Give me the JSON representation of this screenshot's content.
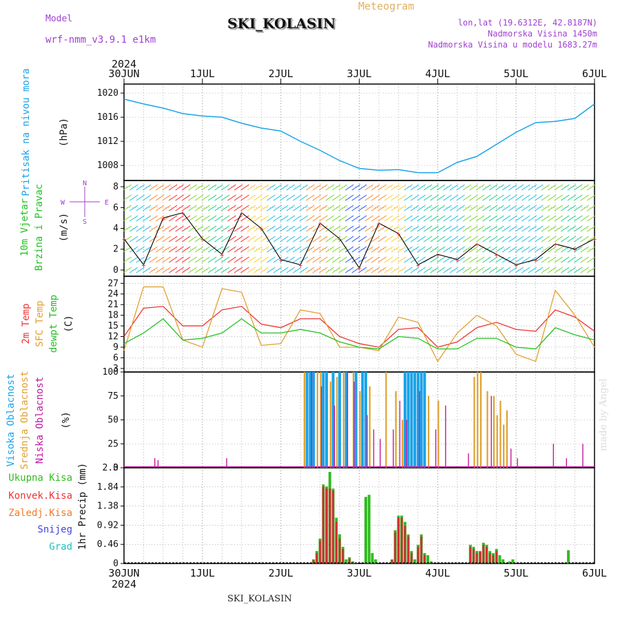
{
  "header": {
    "model_label": "Model",
    "model_name": "wrf-nmm_v3.9.1 e1km",
    "title": "SKI_KOLASIN",
    "meteogram": "Meteogram",
    "lonlat": "lon,lat (19.6312E, 42.8187N)",
    "elevation": "Nadmorska Visina 1450m",
    "model_elevation": "Nadmorska Visina u modelu 1683.27m",
    "credit": "made by Angel",
    "footer": "SKI_KOLASIN"
  },
  "colors": {
    "pressure": "#1aa3e8",
    "temp2m": "#ee3333",
    "sfc_temp": "#e0a030",
    "dewpoint": "#22c022",
    "high_cloud": "#1aa3e8",
    "mid_cloud": "#e0a030",
    "low_cloud": "#c0189c",
    "total_precip": "#33bb22",
    "conv_precip": "#cc3333",
    "grid": "#888888"
  },
  "chart_data": [
    {
      "type": "line",
      "panel": "pressure",
      "ylabel": "Pritisak na nivou mora",
      "unit": "(hPa)",
      "ylim": [
        1005.5,
        1021.5
      ],
      "yticks": [
        1008,
        1012,
        1016,
        1020
      ],
      "x_start_label": "30JUN",
      "x_year": "2024",
      "x_ticks": [
        "30JUN",
        "1JUL",
        "2JUL",
        "3JUL",
        "4JUL",
        "5JUL",
        "6JUL"
      ],
      "x_hours": [
        0,
        6,
        12,
        18,
        24,
        30,
        36,
        42,
        48,
        54,
        60,
        66,
        72,
        78,
        84,
        90,
        96,
        102,
        108,
        114,
        120,
        126,
        132,
        138,
        144
      ],
      "series": [
        {
          "values": [
            1019.0,
            1018.2,
            1017.5,
            1016.6,
            1016.2,
            1016.0,
            1015.0,
            1014.2,
            1013.7,
            1012.0,
            1010.5,
            1008.8,
            1007.5,
            1007.2,
            1007.3,
            1006.8,
            1006.8,
            1008.5,
            1009.5,
            1011.5,
            1013.5,
            1015.1,
            1015.3,
            1015.8,
            1018.2
          ]
        }
      ],
      "grid": true
    },
    {
      "type": "line",
      "panel": "wind",
      "ylabel": [
        "10m Vjetar",
        "Brzina i Pravac"
      ],
      "unit": "(m/s)",
      "direction_legend": {
        "north": "N",
        "south": "S",
        "west": "W",
        "east": "E"
      },
      "ylim": [
        -0.6,
        8.6
      ],
      "yticks": [
        0,
        2,
        4,
        6,
        8
      ],
      "x_hours": [
        0,
        6,
        12,
        18,
        24,
        30,
        36,
        42,
        48,
        54,
        60,
        66,
        72,
        78,
        84,
        90,
        96,
        102,
        108,
        114,
        120,
        126,
        132,
        138,
        144
      ],
      "series": [
        {
          "values": [
            3.0,
            0.5,
            5.0,
            5.5,
            3.0,
            1.5,
            5.5,
            4.0,
            1.0,
            0.5,
            4.5,
            3.0,
            0.2,
            4.5,
            3.5,
            0.5,
            1.5,
            1.0,
            2.5,
            1.5,
            0.5,
            1.0,
            2.5,
            2.0,
            3.0
          ]
        }
      ],
      "grid": true
    },
    {
      "type": "line",
      "panel": "temperature",
      "ylabels": [
        "2m Temp",
        "SFC Temp",
        "dewpt Temp"
      ],
      "unit": "(C)",
      "ylim": [
        2,
        29
      ],
      "yticks": [
        3,
        6,
        9,
        12,
        15,
        18,
        21,
        24,
        27
      ],
      "x_hours": [
        0,
        6,
        12,
        18,
        24,
        30,
        36,
        42,
        48,
        54,
        60,
        66,
        72,
        78,
        84,
        90,
        96,
        102,
        108,
        114,
        120,
        126,
        132,
        138,
        144
      ],
      "series": [
        {
          "name": "2m Temp",
          "values": [
            12.0,
            20.0,
            20.5,
            15.0,
            15.0,
            19.5,
            20.5,
            15.5,
            14.5,
            17.0,
            17.0,
            12.0,
            10.0,
            9.0,
            14.0,
            14.5,
            9.0,
            10.5,
            14.5,
            16.0,
            14.0,
            13.5,
            19.5,
            17.5,
            13.5
          ]
        },
        {
          "name": "SFC Temp",
          "values": [
            8.0,
            26.0,
            26.0,
            11.0,
            9.0,
            25.5,
            24.5,
            9.5,
            10.0,
            19.5,
            18.5,
            9.0,
            9.0,
            8.0,
            17.5,
            16.0,
            5.0,
            13.0,
            18.0,
            15.0,
            7.0,
            5.0,
            25.0,
            18.0,
            9.0
          ]
        },
        {
          "name": "dewpt Temp",
          "values": [
            10.0,
            13.0,
            17.0,
            11.0,
            11.5,
            13.0,
            17.0,
            13.0,
            13.0,
            14.0,
            13.0,
            10.5,
            9.0,
            8.5,
            12.0,
            11.5,
            8.5,
            8.5,
            11.5,
            11.5,
            9.0,
            8.5,
            14.5,
            12.5,
            11.0
          ]
        }
      ],
      "grid": true
    },
    {
      "type": "bar",
      "panel": "clouds",
      "ylabels": [
        "Visoka Oblacnost",
        "Srednja Oblacnost",
        "Niska Oblacnost"
      ],
      "unit": "(%)",
      "ylim": [
        0,
        100
      ],
      "yticks": [
        0,
        25,
        50,
        75,
        100
      ],
      "series": [
        {
          "name": "Visoka Oblacnost",
          "x": [
            56,
            57,
            58,
            61,
            62,
            64,
            66,
            68,
            71,
            73,
            74,
            86,
            87,
            88,
            89,
            90,
            91,
            92
          ],
          "values": [
            100,
            100,
            100,
            100,
            100,
            100,
            100,
            100,
            100,
            100,
            100,
            100,
            100,
            100,
            100,
            100,
            100,
            100
          ]
        },
        {
          "name": "Srednja Oblacnost",
          "x": [
            55,
            59,
            60,
            63,
            65,
            67,
            70,
            72,
            75,
            80,
            83,
            85,
            93,
            96,
            107,
            108,
            109,
            111,
            113,
            114,
            115,
            116,
            117
          ],
          "values": [
            100,
            100,
            100,
            90,
            95,
            100,
            100,
            80,
            85,
            100,
            80,
            50,
            75,
            70,
            95,
            100,
            100,
            80,
            75,
            55,
            70,
            45,
            60
          ]
        },
        {
          "name": "Niska Oblacnost",
          "x": [
            9,
            10,
            31,
            57,
            60,
            64,
            68,
            70,
            74,
            76,
            78,
            82,
            84,
            86,
            90,
            95,
            98,
            105,
            112,
            118,
            120,
            131,
            135,
            140
          ],
          "values": [
            10,
            8,
            10,
            100,
            85,
            65,
            100,
            90,
            55,
            40,
            30,
            40,
            70,
            50,
            80,
            40,
            65,
            15,
            75,
            20,
            10,
            25,
            10,
            25
          ]
        }
      ],
      "grid": true
    },
    {
      "type": "bar",
      "panel": "precip",
      "ylabel": "1hr Precip",
      "unit": "(mm)",
      "legend": [
        "Ukupna Kisa",
        "Konvek.Kisa",
        "Zaledj.Kisa",
        "Snijeg",
        "Grad"
      ],
      "legend_colors": [
        "#33bb22",
        "#ee3333",
        "#f07a2a",
        "#4444dd",
        "#22c0c0"
      ],
      "ylim": [
        0,
        2.3
      ],
      "yticks": [
        0,
        0.46,
        0.92,
        1.38,
        1.84,
        2.3
      ],
      "series": [
        {
          "name": "Ukupna Kisa",
          "x": [
            58,
            59,
            60,
            61,
            62,
            63,
            64,
            65,
            66,
            67,
            68,
            69,
            70,
            71,
            74,
            75,
            76,
            77,
            82,
            83,
            84,
            85,
            86,
            87,
            88,
            89,
            90,
            91,
            92,
            93,
            94,
            106,
            107,
            108,
            109,
            110,
            111,
            112,
            113,
            114,
            115,
            116,
            118,
            119,
            136
          ],
          "values": [
            0.1,
            0.3,
            0.6,
            1.9,
            1.85,
            2.2,
            1.8,
            1.1,
            0.7,
            0.4,
            0.1,
            0.15,
            0.05,
            0.02,
            1.6,
            1.65,
            0.25,
            0.1,
            0.1,
            0.8,
            1.15,
            1.15,
            1.0,
            0.7,
            0.3,
            0.1,
            0.45,
            0.7,
            0.25,
            0.2,
            0.05,
            0.45,
            0.4,
            0.3,
            0.3,
            0.5,
            0.45,
            0.3,
            0.25,
            0.35,
            0.2,
            0.1,
            0.05,
            0.1,
            0.32
          ]
        },
        {
          "name": "Konvek.Kisa",
          "x": [
            58,
            59,
            60,
            61,
            62,
            63,
            64,
            65,
            66,
            67,
            69,
            82,
            83,
            84,
            85,
            86,
            87,
            88,
            90,
            91,
            92,
            106,
            107,
            108,
            109,
            110,
            111,
            112,
            113,
            114
          ],
          "values": [
            0.08,
            0.25,
            0.55,
            1.85,
            1.8,
            1.8,
            1.75,
            1.0,
            0.6,
            0.35,
            0.12,
            0.08,
            0.75,
            1.1,
            1.1,
            0.9,
            0.65,
            0.25,
            0.4,
            0.65,
            0.2,
            0.4,
            0.35,
            0.25,
            0.28,
            0.45,
            0.4,
            0.25,
            0.2,
            0.3
          ]
        }
      ],
      "grid": true
    }
  ]
}
